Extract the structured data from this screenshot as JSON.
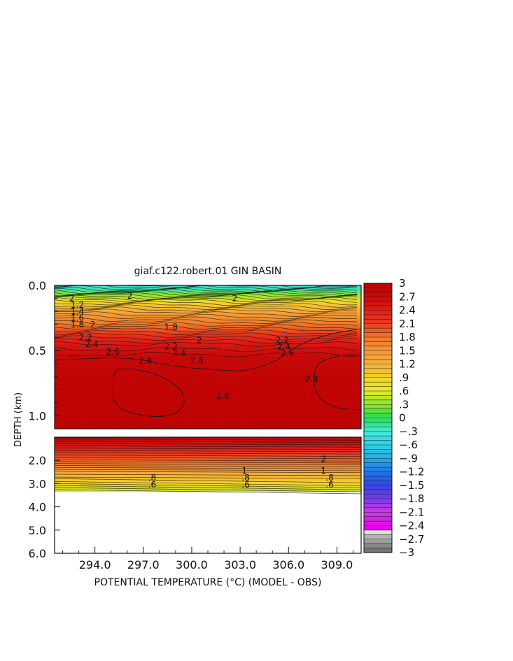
{
  "chart_data": {
    "type": "heatmap",
    "title": "giaf.c122.robert.01 GIN BASIN",
    "xlabel": "POTENTIAL TEMPERATURE (°C) (MODEL - OBS)",
    "ylabel": "DEPTH (km)",
    "x_ticks": [
      "294.0",
      "297.0",
      "300.0",
      "303.0",
      "306.0",
      "309.0"
    ],
    "x_tick_values": [
      294,
      297,
      300,
      303,
      306,
      309
    ],
    "xlim": [
      291.5,
      310.5
    ],
    "upper_panel": {
      "ylim": [
        0.0,
        1.1
      ],
      "y_ticks": [
        "0.0",
        "0.5",
        "1.0"
      ],
      "y_tick_values": [
        0.0,
        0.5,
        1.0
      ]
    },
    "lower_panel": {
      "ylim": [
        1.0,
        6.0
      ],
      "y_ticks": [
        "2.0",
        "3.0",
        "4.0",
        "5.0",
        "6.0"
      ],
      "y_tick_values": [
        2.0,
        3.0,
        4.0,
        5.0,
        6.0
      ],
      "data_bottom_depth": 3.35
    },
    "colorbar": {
      "min": -3.0,
      "max": 3.0,
      "step": 0.1,
      "labels": [
        "3",
        "2.7",
        "2.4",
        "2.1",
        "1.8",
        "1.5",
        "1.2",
        ".9",
        ".6",
        ".3",
        "0",
        "-.3",
        "-.6",
        "-.9",
        "-1.2",
        "-1.5",
        "-1.8",
        "-2.1",
        "-2.4",
        "-2.7",
        "-3"
      ],
      "label_values": [
        3,
        2.7,
        2.4,
        2.1,
        1.8,
        1.5,
        1.2,
        0.9,
        0.6,
        0.3,
        0,
        -0.3,
        -0.6,
        -0.9,
        -1.2,
        -1.5,
        -1.8,
        -2.1,
        -2.4,
        -2.7,
        -3
      ]
    },
    "upper_profile": [
      {
        "depth": 0.0,
        "value": -0.5
      },
      {
        "depth": 0.03,
        "value": -0.2
      },
      {
        "depth": 0.07,
        "value": 0.3
      },
      {
        "depth": 0.12,
        "value": 0.8
      },
      {
        "depth": 0.2,
        "value": 1.3
      },
      {
        "depth": 0.3,
        "value": 1.8
      },
      {
        "depth": 0.38,
        "value": 2.2
      },
      {
        "depth": 0.45,
        "value": 2.5
      },
      {
        "depth": 0.55,
        "value": 2.75
      },
      {
        "depth": 0.7,
        "value": 2.85
      },
      {
        "depth": 1.1,
        "value": 2.9
      }
    ],
    "lower_profile": [
      {
        "depth": 1.0,
        "value": 2.9
      },
      {
        "depth": 1.5,
        "value": 2.4
      },
      {
        "depth": 2.0,
        "value": 1.9
      },
      {
        "depth": 2.5,
        "value": 1.3
      },
      {
        "depth": 3.0,
        "value": 0.9
      },
      {
        "depth": 3.35,
        "value": 0.5
      }
    ],
    "contour_labels_upper": [
      {
        "x": 292.5,
        "depth": 0.15,
        "text": "1.2"
      },
      {
        "x": 292.5,
        "depth": 0.2,
        "text": "1.4"
      },
      {
        "x": 292.5,
        "depth": 0.25,
        "text": "1.6"
      },
      {
        "x": 292.5,
        "depth": 0.3,
        "text": "1.8"
      },
      {
        "x": 293.7,
        "depth": 0.3,
        "text": "2"
      },
      {
        "x": 293.0,
        "depth": 0.4,
        "text": "2.2"
      },
      {
        "x": 293.4,
        "depth": 0.45,
        "text": "2.4"
      },
      {
        "x": 294.7,
        "depth": 0.51,
        "text": "2.6"
      },
      {
        "x": 296.7,
        "depth": 0.58,
        "text": "2.8"
      },
      {
        "x": 298.3,
        "depth": 0.47,
        "text": "2.2"
      },
      {
        "x": 298.8,
        "depth": 0.52,
        "text": "2.4"
      },
      {
        "x": 299.9,
        "depth": 0.58,
        "text": "2.6"
      },
      {
        "x": 300.3,
        "depth": 0.42,
        "text": "2"
      },
      {
        "x": 298.3,
        "depth": 0.32,
        "text": "1.8"
      },
      {
        "x": 301.5,
        "depth": 0.85,
        "text": "2.8"
      },
      {
        "x": 305.2,
        "depth": 0.42,
        "text": "2.2"
      },
      {
        "x": 305.3,
        "depth": 0.47,
        "text": "2.4"
      },
      {
        "x": 305.5,
        "depth": 0.52,
        "text": "2.6"
      },
      {
        "x": 307.0,
        "depth": 0.72,
        "text": "2.8"
      },
      {
        "x": 292.4,
        "depth": 0.1,
        "text": "2"
      },
      {
        "x": 296.0,
        "depth": 0.08,
        "text": "2"
      },
      {
        "x": 302.5,
        "depth": 0.1,
        "text": "2"
      }
    ],
    "contour_labels_lower": [
      {
        "x": 308.0,
        "depth": 1.95,
        "text": "2"
      },
      {
        "x": 303.1,
        "depth": 2.45,
        "text": "1"
      },
      {
        "x": 308.0,
        "depth": 2.45,
        "text": "1"
      },
      {
        "x": 297.3,
        "depth": 2.75,
        "text": ".8"
      },
      {
        "x": 303.1,
        "depth": 2.75,
        "text": ".8"
      },
      {
        "x": 308.3,
        "depth": 2.75,
        "text": ".8"
      },
      {
        "x": 297.3,
        "depth": 3.05,
        "text": ".6"
      },
      {
        "x": 303.1,
        "depth": 3.05,
        "text": ".6"
      },
      {
        "x": 308.3,
        "depth": 3.05,
        "text": ".6"
      }
    ]
  }
}
